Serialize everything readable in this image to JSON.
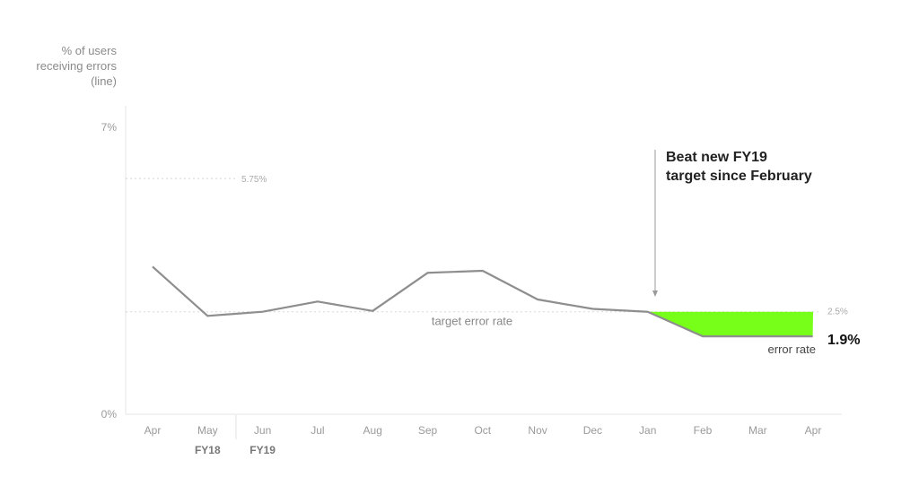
{
  "chart_data": {
    "type": "line",
    "ylabel": [
      "% of users",
      "receiving errors",
      "(line)"
    ],
    "ylim": [
      0,
      7
    ],
    "y_ticks": [
      "7%",
      "0%"
    ],
    "categories": [
      "Apr",
      "May",
      "Jun",
      "Jul",
      "Aug",
      "Sep",
      "Oct",
      "Nov",
      "Dec",
      "Jan",
      "Feb",
      "Mar",
      "Apr"
    ],
    "fiscal_labels": [
      {
        "label": "FY18",
        "category_index": 1
      },
      {
        "label": "FY19",
        "category_index": 2
      }
    ],
    "series": [
      {
        "values": [
          3.6,
          2.4,
          2.5,
          2.75,
          2.52,
          3.45,
          3.5,
          2.8,
          2.57,
          2.5,
          1.9,
          1.9,
          1.9
        ]
      }
    ],
    "reference_lines": [
      {
        "value": 5.75,
        "label": "5.75%"
      },
      {
        "value": 2.5,
        "label": "2.5%",
        "inline_label": "target error rate"
      }
    ],
    "highlight": {
      "from_index": 9,
      "to_index": 12,
      "color": "#77ff1a"
    },
    "annotation": {
      "lines": [
        "Beat new FY19",
        "target since February"
      ],
      "category_index": 9
    },
    "end_label": {
      "value": "1.9%",
      "label": "error rate"
    },
    "grid": false
  }
}
